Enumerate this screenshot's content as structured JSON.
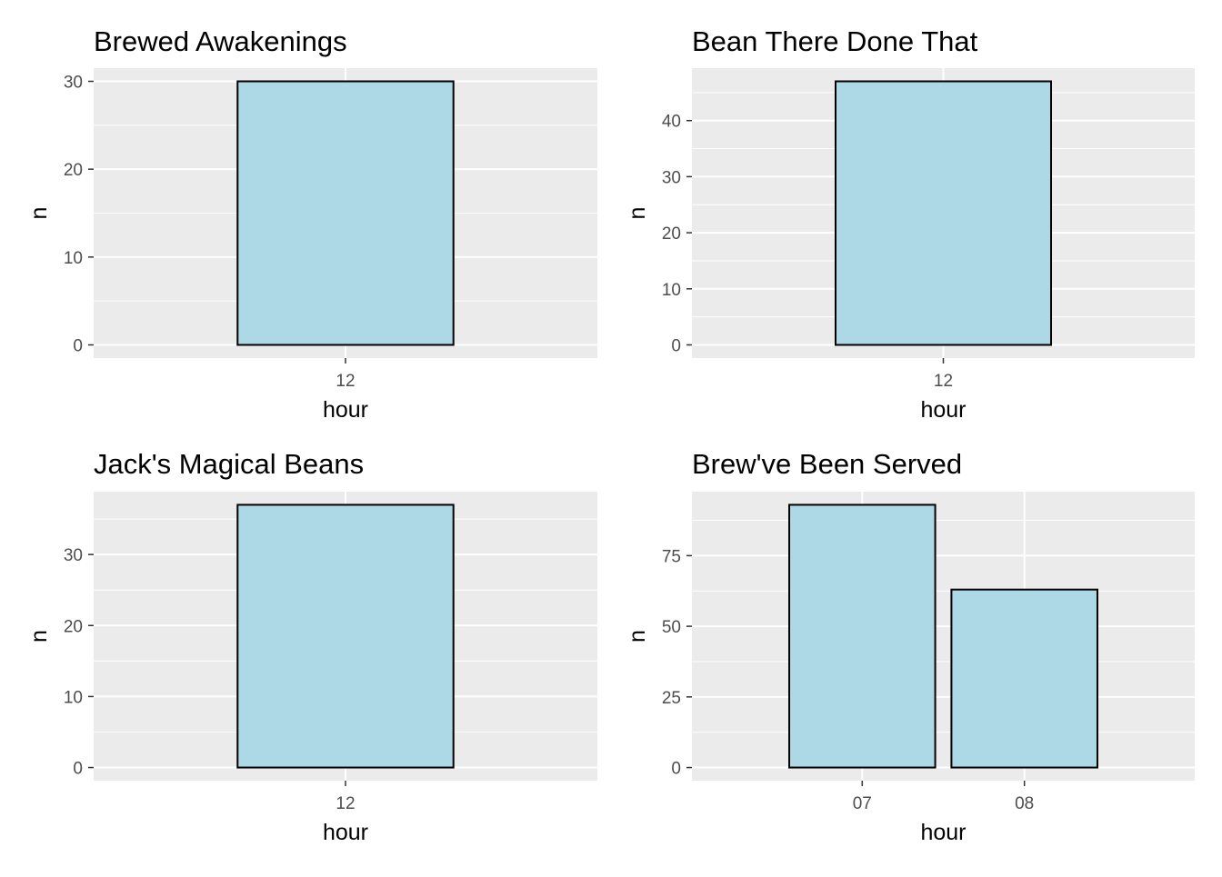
{
  "chart_data": [
    {
      "type": "bar",
      "title": "Brewed Awakenings",
      "xlabel": "hour",
      "ylabel": "n",
      "categories": [
        "12"
      ],
      "values": [
        30
      ],
      "ylim": [
        0,
        30
      ],
      "yticks": [
        0,
        10,
        20,
        30
      ],
      "grid": true,
      "colors": {
        "fill": "#add8e6",
        "stroke": "#000000",
        "panel": "#ebebeb",
        "grid": "#ffffff"
      }
    },
    {
      "type": "bar",
      "title": "Bean There Done That",
      "xlabel": "hour",
      "ylabel": "n",
      "categories": [
        "12"
      ],
      "values": [
        47
      ],
      "ylim": [
        0,
        47
      ],
      "yticks": [
        0,
        10,
        20,
        30,
        40
      ],
      "grid": true,
      "colors": {
        "fill": "#add8e6",
        "stroke": "#000000",
        "panel": "#ebebeb",
        "grid": "#ffffff"
      }
    },
    {
      "type": "bar",
      "title": "Jack's Magical Beans",
      "xlabel": "hour",
      "ylabel": "n",
      "categories": [
        "12"
      ],
      "values": [
        37
      ],
      "ylim": [
        0,
        37
      ],
      "yticks": [
        0,
        10,
        20,
        30
      ],
      "grid": true,
      "colors": {
        "fill": "#add8e6",
        "stroke": "#000000",
        "panel": "#ebebeb",
        "grid": "#ffffff"
      }
    },
    {
      "type": "bar",
      "title": "Brew've Been Served",
      "xlabel": "hour",
      "ylabel": "n",
      "categories": [
        "07",
        "08"
      ],
      "values": [
        93,
        63
      ],
      "ylim": [
        0,
        93
      ],
      "yticks": [
        0,
        25,
        50,
        75
      ],
      "grid": true,
      "colors": {
        "fill": "#add8e6",
        "stroke": "#000000",
        "panel": "#ebebeb",
        "grid": "#ffffff"
      }
    }
  ]
}
